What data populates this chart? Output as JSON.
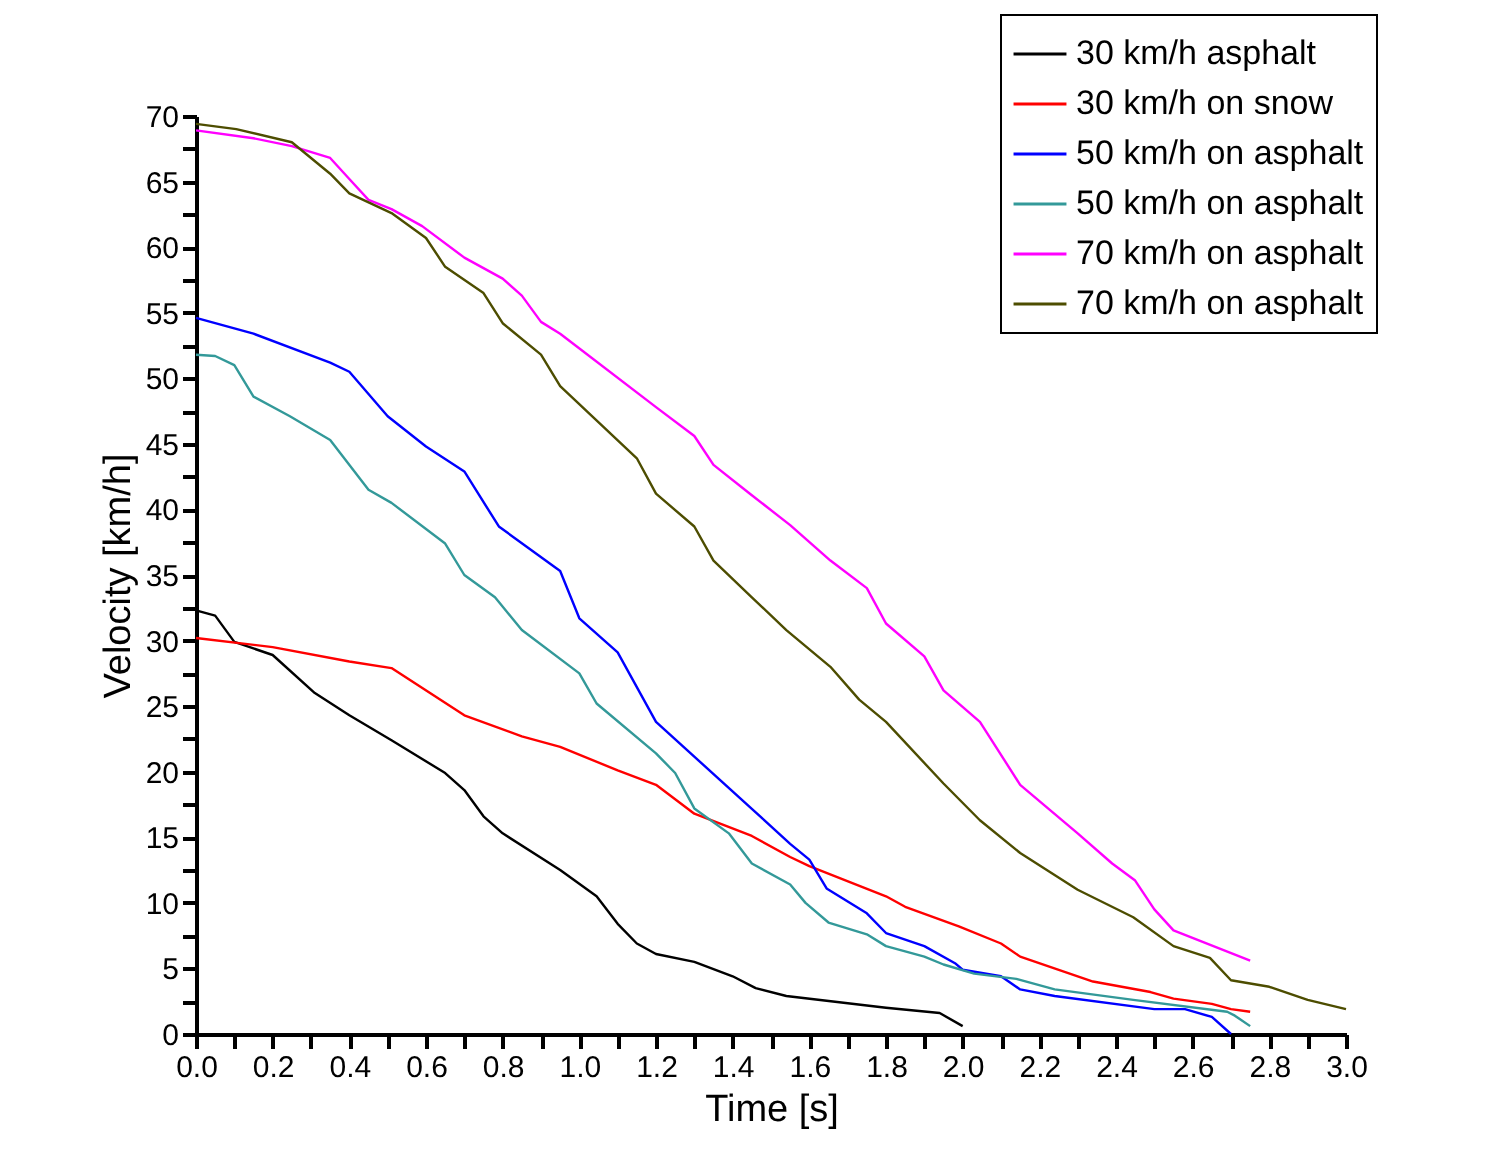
{
  "chart_data": {
    "type": "line",
    "xlabel": "Time [s]",
    "ylabel": "Velocity [km/h]",
    "xlim": [
      0,
      3.0
    ],
    "ylim": [
      0,
      70
    ],
    "xticks": [
      {
        "value": 0,
        "label": "0.0"
      },
      {
        "value": 0.1,
        "label": null
      },
      {
        "value": 0.2,
        "label": "0.2"
      },
      {
        "value": 0.3,
        "label": null
      },
      {
        "value": 0.4,
        "label": "0.4"
      },
      {
        "value": 0.5,
        "label": null
      },
      {
        "value": 0.6,
        "label": "0.6"
      },
      {
        "value": 0.7,
        "label": null
      },
      {
        "value": 0.8,
        "label": "0.8"
      },
      {
        "value": 0.9,
        "label": null
      },
      {
        "value": 1.0,
        "label": "1.0"
      },
      {
        "value": 1.1,
        "label": null
      },
      {
        "value": 1.2,
        "label": "1.2"
      },
      {
        "value": 1.3,
        "label": null
      },
      {
        "value": 1.4,
        "label": "1.4"
      },
      {
        "value": 1.5,
        "label": null
      },
      {
        "value": 1.6,
        "label": "1.6"
      },
      {
        "value": 1.7,
        "label": null
      },
      {
        "value": 1.8,
        "label": "1.8"
      },
      {
        "value": 1.9,
        "label": null
      },
      {
        "value": 2.0,
        "label": "2.0"
      },
      {
        "value": 2.1,
        "label": null
      },
      {
        "value": 2.2,
        "label": "2.2"
      },
      {
        "value": 2.3,
        "label": null
      },
      {
        "value": 2.4,
        "label": "2.4"
      },
      {
        "value": 2.5,
        "label": null
      },
      {
        "value": 2.6,
        "label": "2.6"
      },
      {
        "value": 2.7,
        "label": null
      },
      {
        "value": 2.8,
        "label": "2.8"
      },
      {
        "value": 2.9,
        "label": null
      },
      {
        "value": 3.0,
        "label": "3.0"
      }
    ],
    "yticks": [
      0,
      {
        "value": 2.5,
        "label": null
      },
      5,
      {
        "value": 7.5,
        "label": null
      },
      10,
      {
        "value": 12.5,
        "label": null
      },
      15,
      {
        "value": 17.5,
        "label": null
      },
      20,
      {
        "value": 22.5,
        "label": null
      },
      25,
      {
        "value": 27.5,
        "label": null
      },
      30,
      {
        "value": 32.5,
        "label": null
      },
      35,
      {
        "value": 37.5,
        "label": null
      },
      40,
      {
        "value": 42.5,
        "label": null
      },
      45,
      {
        "value": 47.5,
        "label": null
      },
      50,
      {
        "value": 52.5,
        "label": null
      },
      55,
      {
        "value": 57.5,
        "label": null
      },
      60,
      {
        "value": 62.5,
        "label": null
      },
      65,
      {
        "value": 67.5,
        "label": null
      },
      70
    ],
    "grid": false,
    "legend": "top right",
    "marker": "none",
    "line_style": "solid",
    "series": [
      {
        "name": "30 km/h asphalt",
        "color": "#000000",
        "x": [
          0,
          0.05,
          0.1,
          0.2,
          0.31,
          0.4,
          0.51,
          0.65,
          0.7,
          0.75,
          0.8,
          0.95,
          1.045,
          1.1,
          1.15,
          1.2,
          1.3,
          1.4,
          1.46,
          1.54,
          1.8,
          1.94,
          2.0
        ],
        "values": [
          32.3,
          31.9,
          29.9,
          28.9,
          26.0,
          24.3,
          22.4,
          19.9,
          18.6,
          16.6,
          15.3,
          12.5,
          10.5,
          8.4,
          6.9,
          6.1,
          5.5,
          4.4,
          3.5,
          2.9,
          2.0,
          1.6,
          0.6
        ]
      },
      {
        "name": "30 km/h on snow",
        "color": "#ff0000",
        "x": [
          0,
          0.2,
          0.4,
          0.51,
          0.7,
          0.85,
          0.95,
          1.1,
          1.2,
          1.3,
          1.45,
          1.55,
          1.6,
          1.8,
          1.85,
          1.99,
          2.1,
          2.15,
          2.34,
          2.49,
          2.55,
          2.65,
          2.7,
          2.75
        ],
        "values": [
          30.2,
          29.5,
          28.4,
          27.9,
          24.3,
          22.7,
          21.9,
          20.1,
          19.0,
          16.8,
          15.1,
          13.5,
          12.8,
          10.5,
          9.7,
          8.2,
          6.9,
          5.9,
          4.0,
          3.2,
          2.7,
          2.3,
          1.9,
          1.7
        ]
      },
      {
        "name": "50 km/h on asphalt",
        "color": "#0000ff",
        "x": [
          0,
          0.15,
          0.35,
          0.4,
          0.5,
          0.6,
          0.7,
          0.79,
          0.95,
          1.0,
          1.1,
          1.2,
          1.445,
          1.55,
          1.6,
          1.645,
          1.75,
          1.8,
          1.9,
          1.98,
          2.0,
          2.1,
          2.15,
          2.24,
          2.5,
          2.58,
          2.65,
          2.7
        ],
        "values": [
          54.6,
          53.4,
          51.2,
          50.5,
          47.1,
          44.8,
          42.9,
          38.7,
          35.3,
          31.7,
          29.1,
          23.8,
          17.3,
          14.5,
          13.3,
          11.1,
          9.2,
          7.7,
          6.7,
          5.4,
          4.9,
          4.4,
          3.4,
          2.9,
          1.9,
          1.9,
          1.3,
          0
        ]
      },
      {
        "name": "50 km/h on asphalt",
        "color": "#339999",
        "x": [
          0,
          0.05,
          0.1,
          0.15,
          0.245,
          0.35,
          0.45,
          0.51,
          0.65,
          0.7,
          0.78,
          0.85,
          1.0,
          1.045,
          1.2,
          1.25,
          1.3,
          1.39,
          1.45,
          1.55,
          1.59,
          1.65,
          1.75,
          1.8,
          1.9,
          1.95,
          2.03,
          2.14,
          2.24,
          2.445,
          2.69,
          2.71,
          2.75
        ],
        "values": [
          51.8,
          51.7,
          51.0,
          48.6,
          47.1,
          45.3,
          41.5,
          40.5,
          37.4,
          35.0,
          33.3,
          30.8,
          27.5,
          25.2,
          21.4,
          19.9,
          17.2,
          15.3,
          13.0,
          11.4,
          10.0,
          8.5,
          7.6,
          6.7,
          5.9,
          5.3,
          4.6,
          4.2,
          3.4,
          2.6,
          1.7,
          1.4,
          0.6
        ]
      },
      {
        "name": "70 km/h on asphalt",
        "color": "#ff00ff",
        "x": [
          0,
          0.15,
          0.25,
          0.35,
          0.4,
          0.45,
          0.51,
          0.59,
          0.7,
          0.8,
          0.85,
          0.9,
          0.95,
          1.2,
          1.3,
          1.35,
          1.445,
          1.55,
          1.655,
          1.75,
          1.8,
          1.9,
          1.95,
          2.045,
          2.15,
          2.3,
          2.39,
          2.45,
          2.5,
          2.55,
          2.75
        ],
        "values": [
          68.9,
          68.3,
          67.7,
          66.8,
          65.2,
          63.6,
          62.9,
          61.6,
          59.2,
          57.6,
          56.3,
          54.3,
          53.4,
          47.8,
          45.6,
          43.4,
          41.2,
          38.8,
          36.1,
          34.0,
          31.3,
          28.8,
          26.2,
          23.8,
          19.0,
          15.3,
          13.0,
          11.7,
          9.5,
          7.9,
          5.6
        ]
      },
      {
        "name": "70 km/h on asphalt",
        "color": "#4d4d00",
        "x": [
          0,
          0.105,
          0.25,
          0.35,
          0.4,
          0.51,
          0.6,
          0.65,
          0.75,
          0.8,
          0.9,
          0.95,
          1.15,
          1.2,
          1.3,
          1.35,
          1.45,
          1.54,
          1.655,
          1.73,
          1.8,
          1.95,
          2.045,
          2.15,
          2.3,
          2.445,
          2.55,
          2.645,
          2.7,
          2.8,
          2.9,
          3.0
        ],
        "values": [
          69.4,
          69.0,
          68.0,
          65.6,
          64.1,
          62.6,
          60.7,
          58.5,
          56.5,
          54.2,
          51.8,
          49.4,
          43.9,
          41.2,
          38.7,
          36.1,
          33.3,
          30.8,
          28.0,
          25.5,
          23.8,
          19.1,
          16.3,
          13.8,
          11.0,
          8.9,
          6.7,
          5.8,
          4.1,
          3.6,
          2.6,
          1.9
        ]
      }
    ]
  }
}
